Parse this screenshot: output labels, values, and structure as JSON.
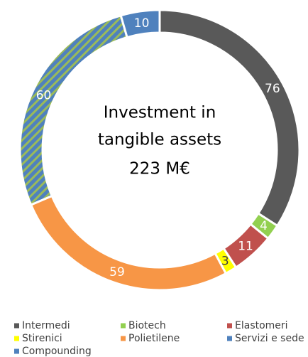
{
  "chart_data": {
    "type": "pie",
    "title": [
      "Investment in",
      "tangible assets",
      "223 M€"
    ],
    "categories": [
      "Intermedi",
      "Biotech",
      "Elastomeri",
      "Stirenici",
      "Polietilene",
      "Servizi e sede",
      "Compounding"
    ],
    "values": [
      76,
      4,
      11,
      3,
      59,
      60,
      10
    ],
    "colors": [
      "#595959",
      "#92d050",
      "#c0504d",
      "#ffff00",
      "#f79646",
      "#4f81bd",
      "#4f81bd"
    ],
    "hatch": [
      null,
      null,
      null,
      null,
      null,
      "#9bbb59",
      null
    ],
    "donut": true
  }
}
